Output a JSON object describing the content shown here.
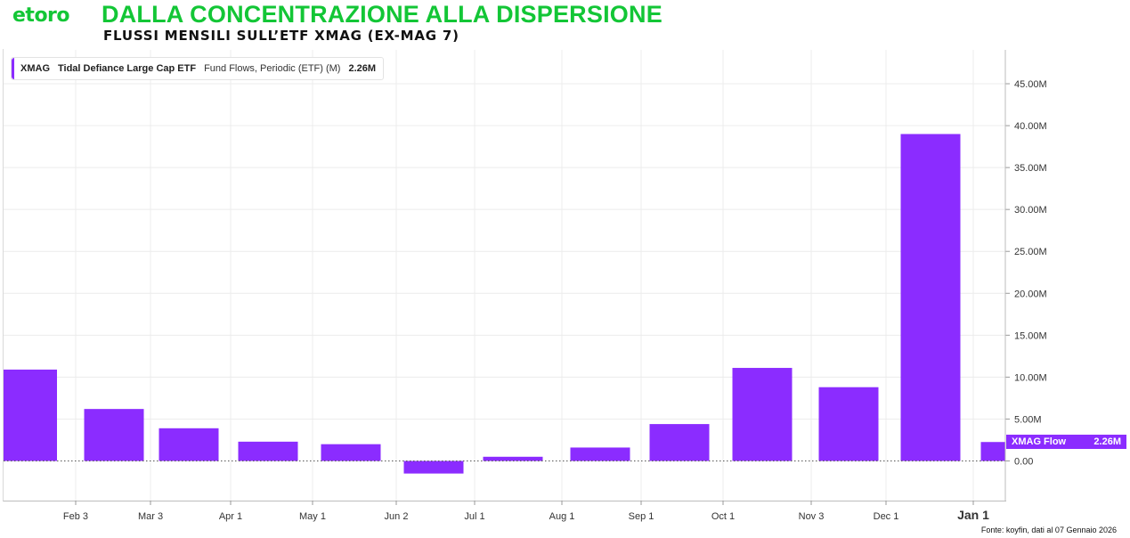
{
  "header": {
    "logo": "etoro",
    "title": "DALLA CONCENTRAZIONE ALLA DISPERSIONE",
    "subtitle": "FLUSSI MENSILI SULL’ETF XMAG (EX-MAG 7)"
  },
  "legend": {
    "symbol": "XMAG",
    "name": "Tidal Defiance Large Cap ETF",
    "metric": "Fund Flows, Periodic (ETF) (M)",
    "value": "2.26M"
  },
  "last_value_tag": {
    "label": "XMAG Flow",
    "value": "2.26M"
  },
  "source": "Fonte: koyfin, dati al 07 Gennaio 2026",
  "colors": {
    "bar": "#8b2cff",
    "brand": "#13c636",
    "grid": "#ececec"
  },
  "chart_data": {
    "type": "bar",
    "title": "DALLA CONCENTRAZIONE ALLA DISPERSIONE",
    "subtitle": "FLUSSI MENSILI SULL’ETF XMAG (EX-MAG 7)",
    "series": [
      {
        "name": "XMAG Flow",
        "points": [
          {
            "period": "Jan",
            "value": 10.9
          },
          {
            "period": "Feb",
            "value": 6.2
          },
          {
            "period": "Mar",
            "value": 3.9
          },
          {
            "period": "Apr",
            "value": 2.3
          },
          {
            "period": "May",
            "value": 2.0
          },
          {
            "period": "Jun",
            "value": -1.5
          },
          {
            "period": "Jul",
            "value": 0.5
          },
          {
            "period": "Aug",
            "value": 1.6
          },
          {
            "period": "Sep",
            "value": 4.4
          },
          {
            "period": "Oct",
            "value": 11.1
          },
          {
            "period": "Nov",
            "value": 8.8
          },
          {
            "period": "Dec",
            "value": 39.0
          },
          {
            "period": "Jan",
            "value": 2.26
          }
        ]
      }
    ],
    "x_ticks": [
      "Feb 3",
      "Mar 3",
      "Apr 1",
      "May 1",
      "Jun 2",
      "Jul 1",
      "Aug 1",
      "Sep 1",
      "Oct 1",
      "Nov 3",
      "Dec 1",
      "Jan 1"
    ],
    "y_ticks": [
      "0.00",
      "5.00M",
      "10.00M",
      "15.00M",
      "20.00M",
      "25.00M",
      "30.00M",
      "35.00M",
      "40.00M",
      "45.00M"
    ],
    "y_tick_values": [
      0,
      5,
      10,
      15,
      20,
      25,
      30,
      35,
      40,
      45
    ],
    "ylim": [
      -5,
      49
    ],
    "unit": "M",
    "grid": true,
    "legend_position": "top-left"
  }
}
